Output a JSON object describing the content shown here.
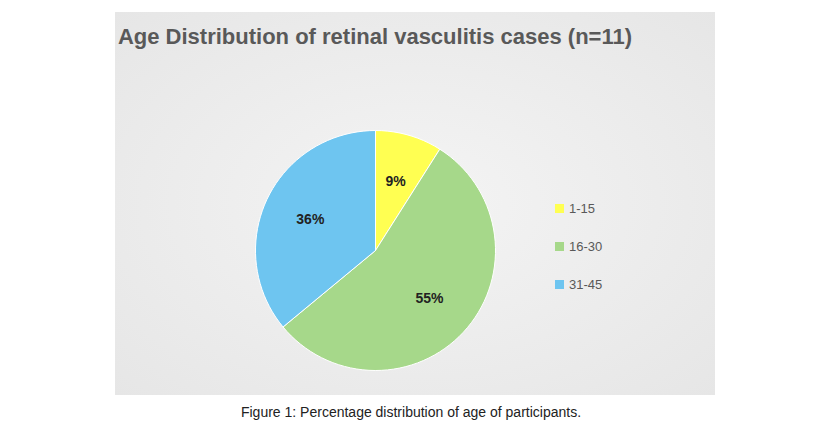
{
  "chart_data": {
    "type": "pie",
    "title": "Age Distribution of retinal vasculitis cases (n=11)",
    "caption": "Figure 1: Percentage distribution of age of participants.",
    "categories": [
      "1-15",
      "16-30",
      "31-45"
    ],
    "values": [
      9,
      55,
      36
    ],
    "value_labels": [
      "9%",
      "55%",
      "36%"
    ],
    "colors": [
      "#ffff52",
      "#a6d88a",
      "#6ec5f0"
    ],
    "data_labels": true,
    "legend": "right"
  }
}
